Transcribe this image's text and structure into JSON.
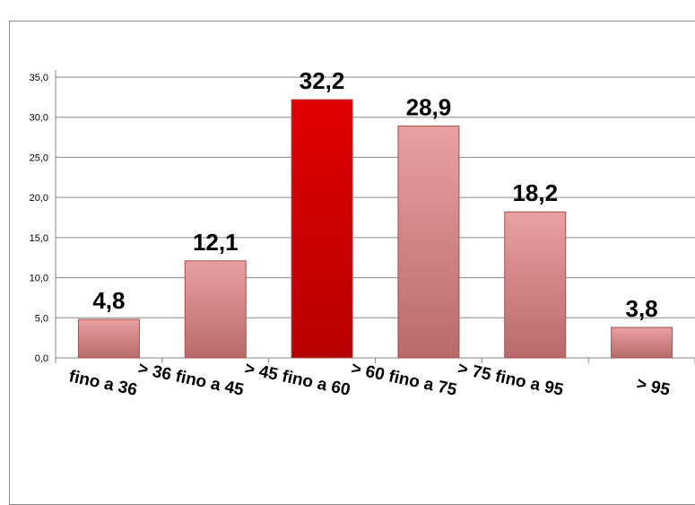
{
  "chart_data": {
    "type": "bar",
    "title": "",
    "xlabel": "",
    "ylabel": "",
    "categories": [
      "fino a  36",
      ">  36 fino a  45",
      ">  45 fino a  60",
      ">  60 fino a  75",
      ">  75 fino a  95",
      "> 95"
    ],
    "values": [
      4.8,
      12.1,
      32.2,
      28.9,
      18.2,
      3.8
    ],
    "value_labels": [
      "4,8",
      "12,1",
      "32,2",
      "28,9",
      "18,2",
      "3,8"
    ],
    "ylim": [
      0,
      35
    ],
    "yticks": [
      0,
      5,
      10,
      15,
      20,
      25,
      30,
      35
    ],
    "ytick_labels": [
      "0,0",
      "5,0",
      "10,0",
      "15,0",
      "20,0",
      "25,0",
      "30,0",
      "35,0"
    ],
    "grid": true,
    "legend": "none",
    "highlight_index": 2,
    "colors": {
      "bar_top": "#e8a0a0",
      "bar_bottom": "#b86a6a",
      "highlight_top": "#e00000",
      "highlight_bottom": "#b80000",
      "bar_edge": "#a05050",
      "grid": "#868686"
    }
  }
}
